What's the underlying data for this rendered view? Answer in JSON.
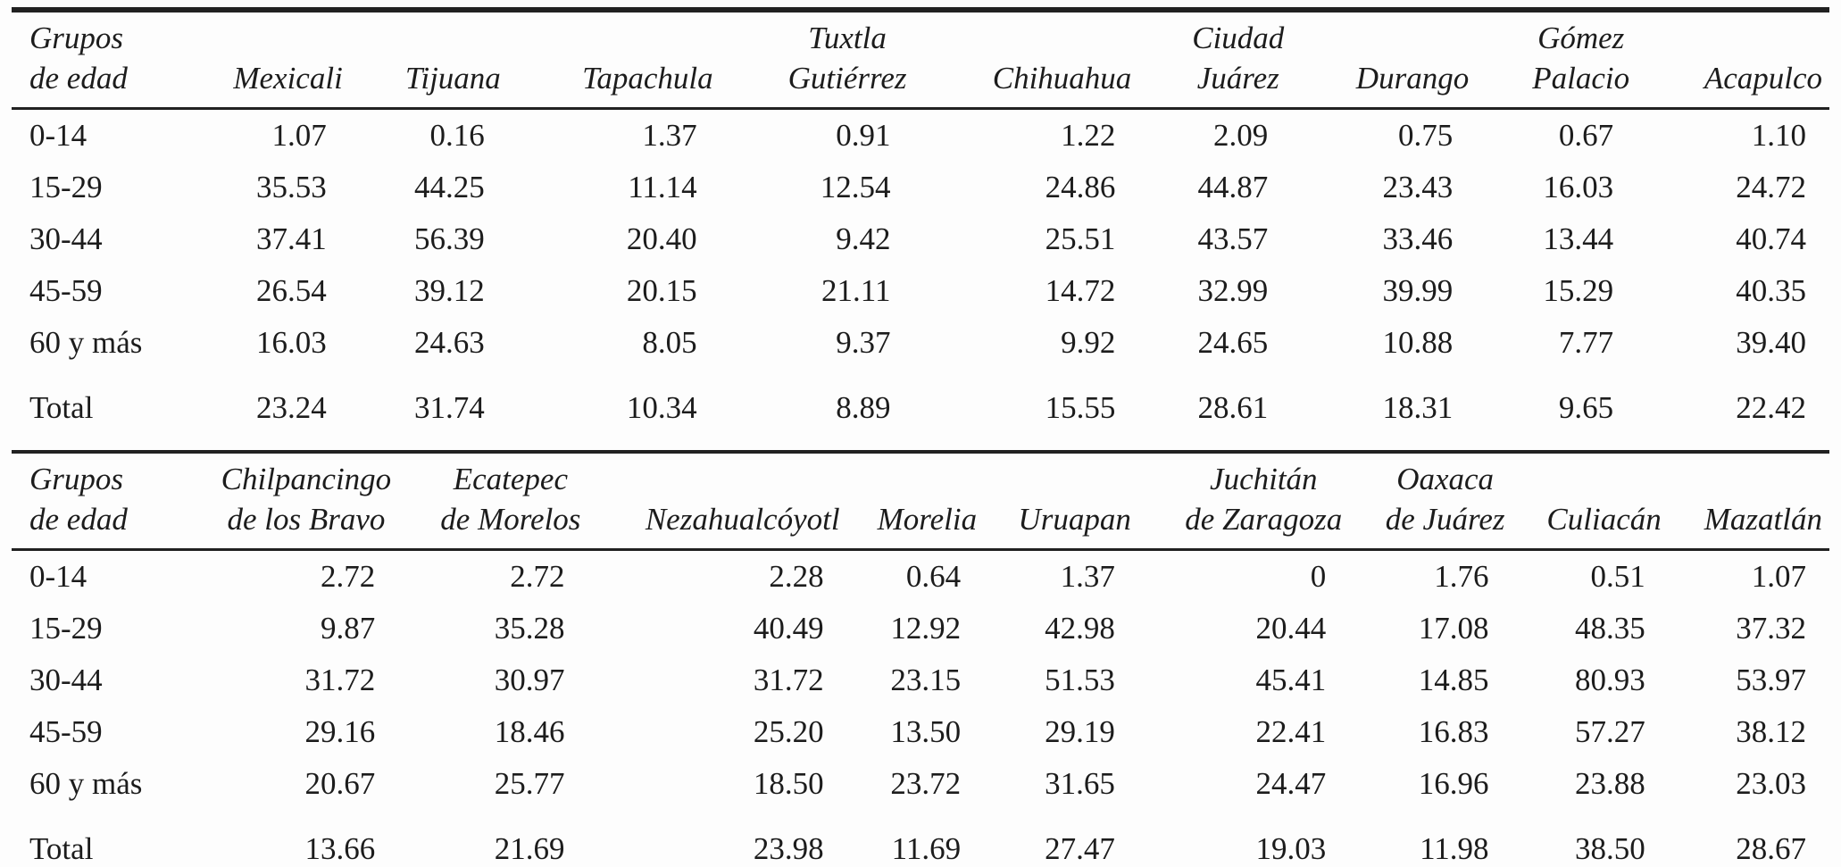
{
  "page": {
    "background": "#fdfdfd",
    "text_color": "#1c1c1c",
    "rule_color": "#212121"
  },
  "sections": [
    {
      "id": "upper",
      "age_header_lines": [
        "Grupos",
        "de edad"
      ],
      "city_headers": [
        [
          "Mexicali"
        ],
        [
          "Tijuana"
        ],
        [
          "Tapachula"
        ],
        [
          "Tuxtla",
          "Gutiérrez"
        ],
        [
          "Chihuahua"
        ],
        [
          "Ciudad",
          "Juárez"
        ],
        [
          "Durango"
        ],
        [
          "Gómez",
          "Palacio"
        ],
        [
          "Acapulco"
        ]
      ],
      "rows": [
        {
          "label": "0-14",
          "values": [
            "1.07",
            "0.16",
            "1.37",
            "0.91",
            "1.22",
            "2.09",
            "0.75",
            "0.67",
            "1.10"
          ]
        },
        {
          "label": "15-29",
          "values": [
            "35.53",
            "44.25",
            "11.14",
            "12.54",
            "24.86",
            "44.87",
            "23.43",
            "16.03",
            "24.72"
          ]
        },
        {
          "label": "30-44",
          "values": [
            "37.41",
            "56.39",
            "20.40",
            "9.42",
            "25.51",
            "43.57",
            "33.46",
            "13.44",
            "40.74"
          ]
        },
        {
          "label": "45-59",
          "values": [
            "26.54",
            "39.12",
            "20.15",
            "21.11",
            "14.72",
            "32.99",
            "39.99",
            "15.29",
            "40.35"
          ]
        },
        {
          "label": "60 y más",
          "values": [
            "16.03",
            "24.63",
            "8.05",
            "9.37",
            "9.92",
            "24.65",
            "10.88",
            "7.77",
            "39.40"
          ]
        },
        {
          "label": "Total",
          "values": [
            "23.24",
            "31.74",
            "10.34",
            "8.89",
            "15.55",
            "28.61",
            "18.31",
            "9.65",
            "22.42"
          ],
          "is_total": true
        }
      ]
    },
    {
      "id": "lower",
      "age_header_lines": [
        "Grupos",
        "de edad"
      ],
      "city_headers": [
        [
          "Chilpancingo",
          "de los Bravo"
        ],
        [
          "Ecatepec",
          "de Morelos"
        ],
        [
          "Nezahualcóyotl"
        ],
        [
          "Morelia"
        ],
        [
          "Uruapan"
        ],
        [
          "Juchitán",
          "de Zaragoza"
        ],
        [
          "Oaxaca",
          "de Juárez"
        ],
        [
          "Culiacán"
        ],
        [
          "Mazatlán"
        ]
      ],
      "rows": [
        {
          "label": "0-14",
          "values": [
            "2.72",
            "2.72",
            "2.28",
            "0.64",
            "1.37",
            "0",
            "1.76",
            "0.51",
            "1.07"
          ]
        },
        {
          "label": "15-29",
          "values": [
            "9.87",
            "35.28",
            "40.49",
            "12.92",
            "42.98",
            "20.44",
            "17.08",
            "48.35",
            "37.32"
          ]
        },
        {
          "label": "30-44",
          "values": [
            "31.72",
            "30.97",
            "31.72",
            "23.15",
            "51.53",
            "45.41",
            "14.85",
            "80.93",
            "53.97"
          ]
        },
        {
          "label": "45-59",
          "values": [
            "29.16",
            "18.46",
            "25.20",
            "13.50",
            "29.19",
            "22.41",
            "16.83",
            "57.27",
            "38.12"
          ]
        },
        {
          "label": "60 y más",
          "values": [
            "20.67",
            "25.77",
            "18.50",
            "23.72",
            "31.65",
            "24.47",
            "16.96",
            "23.88",
            "23.03"
          ]
        },
        {
          "label": "Total",
          "values": [
            "13.66",
            "21.69",
            "23.98",
            "11.69",
            "27.47",
            "19.03",
            "11.98",
            "38.50",
            "28.67"
          ],
          "is_total": true
        }
      ]
    }
  ]
}
